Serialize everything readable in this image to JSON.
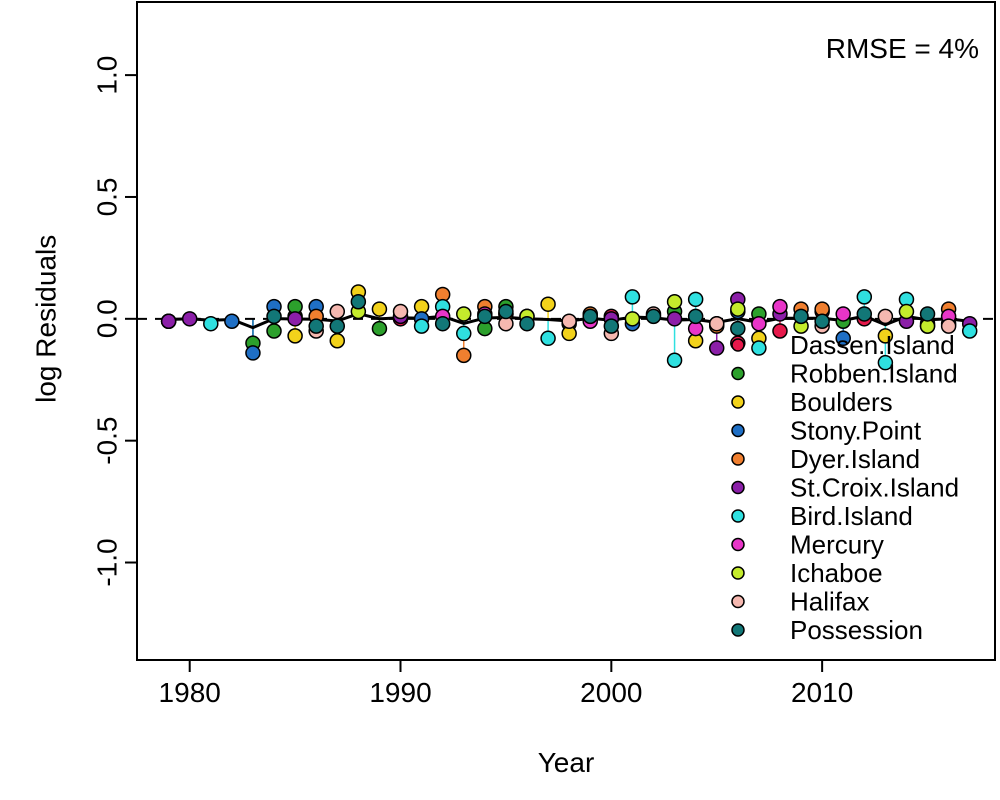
{
  "chart_data": {
    "type": "scatter",
    "title": "",
    "xlabel": "Year",
    "ylabel": "log Residuals",
    "xlim": [
      1977.5,
      2018.2
    ],
    "ylim": [
      -1.4,
      1.3
    ],
    "x_ticks": [
      1980,
      1990,
      2000,
      2010
    ],
    "x_tick_labels": [
      "1980",
      "1990",
      "2000",
      "2010"
    ],
    "y_ticks": [
      -1.0,
      -0.5,
      0.0,
      0.5,
      1.0
    ],
    "y_tick_labels": [
      "-1.0",
      "-0.5",
      "0.0",
      "0.5",
      "1.0"
    ],
    "grid": false,
    "reference_line_y": 0,
    "annotation": "RMSE = 4%",
    "legend_position": "bottom-right",
    "series": [
      {
        "name": "Dassen.Island",
        "color": "#E6194B",
        "x": [
          1979,
          1985,
          1990,
          1995,
          2000,
          2005,
          2006,
          2008,
          2010,
          2012,
          2015
        ],
        "y": [
          -0.01,
          0.01,
          0.0,
          0.02,
          0.01,
          -0.02,
          -0.1,
          -0.05,
          0.03,
          0.0,
          -0.02
        ]
      },
      {
        "name": "Robben.Island",
        "color": "#2CA02C",
        "x": [
          1983,
          1984,
          1985,
          1989,
          1994,
          1995,
          1998,
          2003,
          2007,
          2011
        ],
        "y": [
          -0.1,
          -0.05,
          0.05,
          -0.04,
          -0.04,
          0.05,
          -0.02,
          0.03,
          0.02,
          -0.01
        ]
      },
      {
        "name": "Boulders",
        "color": "#F2D21B",
        "x": [
          1985,
          1987,
          1988,
          1989,
          1991,
          1995,
          1997,
          1998,
          2004,
          2007,
          2013,
          2016
        ],
        "y": [
          -0.07,
          -0.09,
          0.11,
          0.04,
          0.05,
          0.02,
          0.06,
          -0.06,
          -0.09,
          -0.08,
          -0.07,
          -0.02
        ]
      },
      {
        "name": "Stony.Point",
        "color": "#1F6FC5",
        "x": [
          1982,
          1983,
          1984,
          1986,
          1991,
          1996,
          2001,
          2006,
          2011
        ],
        "y": [
          -0.01,
          -0.14,
          0.05,
          0.05,
          0.0,
          0.01,
          -0.02,
          0.03,
          -0.08
        ]
      },
      {
        "name": "Dyer.Island",
        "color": "#F07F2F",
        "x": [
          1979,
          1986,
          1992,
          1993,
          1994,
          1999,
          2005,
          2009,
          2010,
          2015,
          2016
        ],
        "y": [
          -0.01,
          0.01,
          0.1,
          -0.15,
          0.05,
          0.02,
          -0.03,
          0.04,
          0.04,
          -0.03,
          0.04
        ]
      },
      {
        "name": "St.Croix.Island",
        "color": "#8B1FA8",
        "x": [
          1979,
          1980,
          1985,
          1990,
          2000,
          2003,
          2005,
          2006,
          2008,
          2014,
          2017
        ],
        "y": [
          -0.01,
          0.0,
          0.0,
          0.01,
          0.0,
          0.0,
          -0.12,
          0.08,
          0.02,
          -0.01,
          -0.02
        ]
      },
      {
        "name": "Bird.Island",
        "color": "#2FE0E0",
        "x": [
          1981,
          1991,
          1992,
          1993,
          1997,
          2001,
          2003,
          2004,
          2007,
          2012,
          2013,
          2014,
          2017
        ],
        "y": [
          -0.02,
          -0.03,
          0.05,
          -0.06,
          -0.08,
          0.09,
          -0.17,
          0.08,
          -0.12,
          0.09,
          -0.18,
          0.08,
          -0.05
        ]
      },
      {
        "name": "Mercury",
        "color": "#E835C8",
        "x": [
          1992,
          1994,
          1999,
          2004,
          2007,
          2008,
          2011,
          2016
        ],
        "y": [
          0.01,
          0.02,
          -0.01,
          -0.04,
          -0.02,
          0.05,
          0.02,
          0.01
        ]
      },
      {
        "name": "Ichaboe",
        "color": "#C4EB2C",
        "x": [
          1988,
          1993,
          1996,
          2001,
          2003,
          2006,
          2009,
          2014,
          2015
        ],
        "y": [
          0.03,
          0.02,
          0.01,
          0.0,
          0.07,
          0.04,
          -0.03,
          0.03,
          -0.03
        ]
      },
      {
        "name": "Halifax",
        "color": "#F5B8B0",
        "x": [
          1986,
          1987,
          1990,
          1995,
          1998,
          2000,
          2002,
          2005,
          2010,
          2013,
          2016
        ],
        "y": [
          -0.05,
          0.03,
          0.03,
          -0.02,
          -0.01,
          -0.06,
          0.02,
          -0.02,
          -0.03,
          0.01,
          -0.03
        ]
      },
      {
        "name": "Possession",
        "color": "#127777",
        "x": [
          1984,
          1986,
          1987,
          1988,
          1992,
          1994,
          1995,
          1996,
          1999,
          2000,
          2002,
          2004,
          2006,
          2009,
          2010,
          2012,
          2015
        ],
        "y": [
          0.01,
          -0.03,
          -0.03,
          0.07,
          -0.02,
          0.01,
          0.03,
          -0.02,
          0.01,
          -0.03,
          0.01,
          0.01,
          -0.04,
          0.01,
          -0.01,
          0.02,
          0.02
        ]
      }
    ]
  }
}
